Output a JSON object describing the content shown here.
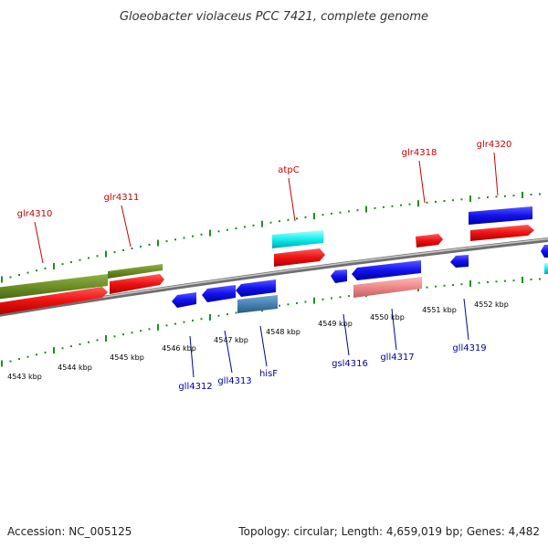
{
  "title": "Gloeobacter violaceus PCC 7421, complete genome",
  "footer": {
    "accession": "Accession: NC_005125",
    "summary": "Topology: circular; Length: 4,659,019 bp; Genes: 4,482"
  },
  "scale": {
    "ticks": [
      "4543 kbp",
      "4544 kbp",
      "4545 kbp",
      "4546 kbp",
      "4547 kbp",
      "4548 kbp",
      "4549 kbp",
      "4550 kbp",
      "4551 kbp",
      "4552 kbp"
    ]
  },
  "genes": {
    "forward": [
      "glr4310",
      "glr4311",
      "atpC",
      "glr4318",
      "glr4320"
    ],
    "reverse": [
      "gll4312",
      "gll4313",
      "hisF",
      "gsl4316",
      "gll4317",
      "gll4319"
    ]
  },
  "colors": {
    "forward_label": "#cc0000",
    "reverse_label": "#000099",
    "dots": "#228b22",
    "backbone": "#888888"
  }
}
